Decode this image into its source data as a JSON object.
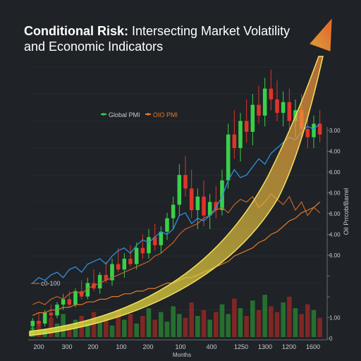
{
  "chart_data": {
    "type": "candlestick",
    "title_bold": "Conditional Risk:",
    "title_rest": " Intersecting Market Volatility",
    "title_line2": "and Economic Indicators",
    "xlabel": "Months",
    "ylabel": "Oil Prrcob/Barrel",
    "x_ticks": [
      "200",
      "300",
      "200",
      "100",
      "200",
      "100",
      "400",
      "1250",
      "1300",
      "1200",
      "1600"
    ],
    "y_ticks_right": [
      "3.00",
      "4.00",
      "6.00",
      "6.00",
      "6.00",
      "4.00",
      "6.00",
      "",
      "",
      "1.00",
      "0"
    ],
    "legend": [
      {
        "label": "Global PMI",
        "color": "#3ad04a"
      },
      {
        "label": "OIO PMI",
        "color": "#e07a2e"
      }
    ],
    "left_annotation": "c0-100",
    "ylim": [
      0,
      100
    ],
    "candles": [
      {
        "o": 4,
        "h": 7,
        "l": 2,
        "c": 6
      },
      {
        "o": 6,
        "h": 9,
        "l": 4,
        "c": 5
      },
      {
        "o": 5,
        "h": 10,
        "l": 4,
        "c": 9
      },
      {
        "o": 9,
        "h": 12,
        "l": 7,
        "c": 8
      },
      {
        "o": 8,
        "h": 13,
        "l": 7,
        "c": 12
      },
      {
        "o": 12,
        "h": 16,
        "l": 10,
        "c": 14
      },
      {
        "o": 14,
        "h": 17,
        "l": 11,
        "c": 12
      },
      {
        "o": 12,
        "h": 18,
        "l": 11,
        "c": 17
      },
      {
        "o": 17,
        "h": 21,
        "l": 14,
        "c": 15
      },
      {
        "o": 15,
        "h": 22,
        "l": 14,
        "c": 20
      },
      {
        "o": 20,
        "h": 25,
        "l": 17,
        "c": 18
      },
      {
        "o": 18,
        "h": 24,
        "l": 16,
        "c": 23
      },
      {
        "o": 23,
        "h": 28,
        "l": 20,
        "c": 21
      },
      {
        "o": 21,
        "h": 29,
        "l": 19,
        "c": 27
      },
      {
        "o": 27,
        "h": 33,
        "l": 24,
        "c": 25
      },
      {
        "o": 25,
        "h": 31,
        "l": 22,
        "c": 29
      },
      {
        "o": 29,
        "h": 34,
        "l": 26,
        "c": 27
      },
      {
        "o": 27,
        "h": 35,
        "l": 25,
        "c": 33
      },
      {
        "o": 33,
        "h": 38,
        "l": 29,
        "c": 31
      },
      {
        "o": 31,
        "h": 40,
        "l": 29,
        "c": 37
      },
      {
        "o": 37,
        "h": 42,
        "l": 32,
        "c": 34
      },
      {
        "o": 34,
        "h": 41,
        "l": 31,
        "c": 39
      },
      {
        "o": 39,
        "h": 46,
        "l": 36,
        "c": 44
      },
      {
        "o": 44,
        "h": 52,
        "l": 40,
        "c": 49
      },
      {
        "o": 49,
        "h": 64,
        "l": 45,
        "c": 60
      },
      {
        "o": 60,
        "h": 67,
        "l": 52,
        "c": 55
      },
      {
        "o": 55,
        "h": 62,
        "l": 44,
        "c": 47
      },
      {
        "o": 47,
        "h": 55,
        "l": 40,
        "c": 52
      },
      {
        "o": 52,
        "h": 58,
        "l": 41,
        "c": 45
      },
      {
        "o": 45,
        "h": 53,
        "l": 40,
        "c": 50
      },
      {
        "o": 50,
        "h": 56,
        "l": 44,
        "c": 47
      },
      {
        "o": 47,
        "h": 62,
        "l": 45,
        "c": 58
      },
      {
        "o": 58,
        "h": 79,
        "l": 55,
        "c": 75
      },
      {
        "o": 75,
        "h": 84,
        "l": 66,
        "c": 70
      },
      {
        "o": 70,
        "h": 83,
        "l": 65,
        "c": 80
      },
      {
        "o": 80,
        "h": 88,
        "l": 72,
        "c": 76
      },
      {
        "o": 76,
        "h": 90,
        "l": 71,
        "c": 86
      },
      {
        "o": 86,
        "h": 93,
        "l": 79,
        "c": 82
      },
      {
        "o": 82,
        "h": 96,
        "l": 78,
        "c": 92
      },
      {
        "o": 92,
        "h": 99,
        "l": 84,
        "c": 88
      },
      {
        "o": 88,
        "h": 95,
        "l": 80,
        "c": 83
      },
      {
        "o": 83,
        "h": 91,
        "l": 78,
        "c": 87
      },
      {
        "o": 87,
        "h": 92,
        "l": 77,
        "c": 80
      },
      {
        "o": 80,
        "h": 88,
        "l": 74,
        "c": 84
      },
      {
        "o": 84,
        "h": 90,
        "l": 74,
        "c": 77
      },
      {
        "o": 77,
        "h": 83,
        "l": 70,
        "c": 74
      },
      {
        "o": 74,
        "h": 82,
        "l": 70,
        "c": 79
      },
      {
        "o": 79,
        "h": 84,
        "l": 72,
        "c": 75
      }
    ],
    "volume": [
      5,
      8,
      4,
      10,
      7,
      12,
      6,
      9,
      11,
      7,
      13,
      8,
      10,
      6,
      14,
      9,
      12,
      7,
      11,
      15,
      9,
      13,
      8,
      16,
      12,
      10,
      18,
      11,
      14,
      9,
      13,
      17,
      12,
      20,
      15,
      11,
      19,
      14,
      22,
      16,
      13,
      18,
      21,
      15,
      12,
      17,
      14,
      10
    ],
    "series_blue": [
      20,
      22,
      21,
      23,
      24,
      22,
      25,
      26,
      24,
      27,
      28,
      29,
      27,
      30,
      32,
      33,
      31,
      34,
      36,
      35,
      37,
      39,
      38,
      40,
      45,
      46,
      42,
      44,
      43,
      45,
      48,
      52,
      58,
      62,
      59,
      60,
      63,
      66,
      64,
      68,
      70,
      72,
      74,
      73,
      76,
      78,
      77,
      79
    ],
    "series_orange": [
      8,
      9,
      9,
      10,
      10,
      11,
      11,
      12,
      12,
      13,
      13,
      14,
      14,
      15,
      15,
      16,
      16,
      17,
      17,
      18,
      18,
      19,
      20,
      20,
      21,
      22,
      22,
      23,
      24,
      25,
      26,
      27,
      28,
      30,
      31,
      32,
      33,
      35,
      36,
      38,
      39,
      41,
      43,
      44,
      46,
      47,
      48,
      50
    ],
    "series_orange2": [
      12,
      13,
      12,
      14,
      15,
      14,
      16,
      17,
      16,
      18,
      19,
      20,
      21,
      22,
      23,
      24,
      25,
      26,
      27,
      28,
      30,
      31,
      33,
      35,
      38,
      40,
      41,
      42,
      44,
      45,
      47,
      48,
      46,
      49,
      51,
      50,
      52,
      48,
      50,
      53,
      51,
      49,
      52,
      47,
      50,
      45,
      48,
      46
    ]
  },
  "colors": {
    "bg": "#1f2226",
    "up": "#3ad04a",
    "down": "#e0342a",
    "blue": "#2f8fe0",
    "orange": "#e07a2e",
    "band": "#d8e03a",
    "arrow": "#e86a2a",
    "text": "#ffffff",
    "axis_text": "#c8ccd2"
  }
}
